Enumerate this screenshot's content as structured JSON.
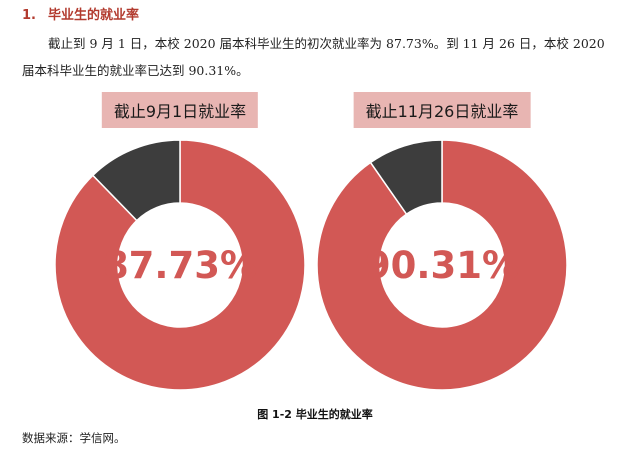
{
  "heading": {
    "number": "1.",
    "title": "毕业生的就业率"
  },
  "paragraph": "截止到 9 月 1 日，本校 2020 届本科毕业生的初次就业率为 87.73%。到 11 月 26 日，本校 2020 届本科毕业生的就业率已达到 90.31%。",
  "caption": "图 1-2  毕业生的就业率",
  "source": "数据来源：学信网。",
  "colors": {
    "employed": "#d25855",
    "not_employed": "#3d3d3d",
    "label_bg": "#e8b5b2",
    "center_text": "#d25855",
    "heading": "#b23a2e"
  },
  "chart_data": [
    {
      "type": "pie",
      "style": "donut",
      "title": "截止9月1日就业率",
      "center_label": "87.73%",
      "slices": [
        {
          "value": 87.73,
          "color": "#d25855"
        },
        {
          "value": 12.27,
          "color": "#3d3d3d"
        }
      ]
    },
    {
      "type": "pie",
      "style": "donut",
      "title": "截止11月26日就业率",
      "center_label": "90.31%",
      "slices": [
        {
          "value": 90.31,
          "color": "#d25855"
        },
        {
          "value": 9.69,
          "color": "#3d3d3d"
        }
      ]
    }
  ]
}
